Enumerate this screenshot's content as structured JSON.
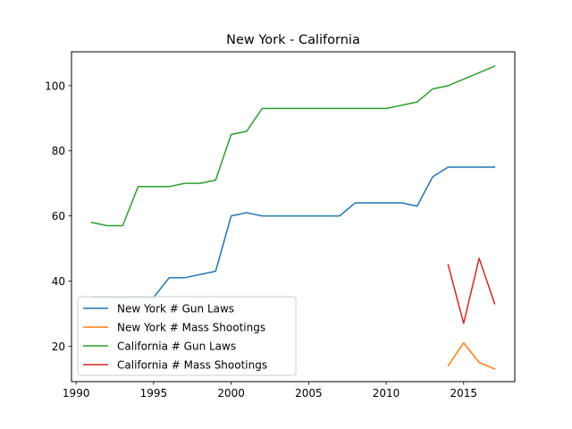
{
  "chart_data": {
    "type": "line",
    "title": "New York - California",
    "xlabel": "",
    "ylabel": "",
    "xlim": [
      1989.7,
      2018.3
    ],
    "ylim": [
      9.1,
      110.4
    ],
    "xticks": [
      1990,
      1995,
      2000,
      2005,
      2010,
      2015
    ],
    "yticks": [
      20,
      40,
      60,
      80,
      100
    ],
    "grid": false,
    "legend_position": "lower-left",
    "series": [
      {
        "name": "New York # Gun Laws",
        "color": "#1f77b4",
        "x": [
          1991,
          1992,
          1993,
          1994,
          1995,
          1996,
          1997,
          1998,
          1999,
          2000,
          2001,
          2002,
          2003,
          2004,
          2005,
          2006,
          2007,
          2008,
          2009,
          2010,
          2011,
          2012,
          2013,
          2014,
          2015,
          2016,
          2017
        ],
        "values": [
          35,
          35,
          35,
          35,
          35,
          41,
          41,
          42,
          43,
          60,
          61,
          60,
          60,
          60,
          60,
          60,
          60,
          64,
          64,
          64,
          64,
          63,
          72,
          75,
          75,
          75,
          75
        ]
      },
      {
        "name": "New York # Mass Shootings",
        "color": "#ff7f0e",
        "x": [
          2014,
          2015,
          2016,
          2017
        ],
        "values": [
          14,
          21,
          15,
          13
        ]
      },
      {
        "name": "California # Gun Laws",
        "color": "#2ca02c",
        "x": [
          1991,
          1992,
          1993,
          1994,
          1995,
          1996,
          1997,
          1998,
          1999,
          2000,
          2001,
          2002,
          2003,
          2004,
          2005,
          2006,
          2007,
          2008,
          2009,
          2010,
          2011,
          2012,
          2013,
          2014,
          2015,
          2016,
          2017
        ],
        "values": [
          58,
          57,
          57,
          69,
          69,
          69,
          70,
          70,
          71,
          85,
          86,
          93,
          93,
          93,
          93,
          93,
          93,
          93,
          93,
          93,
          94,
          95,
          99,
          100,
          102,
          104,
          106
        ]
      },
      {
        "name": "California # Mass Shootings",
        "color": "#d62728",
        "x": [
          2014,
          2015,
          2016,
          2017
        ],
        "values": [
          45,
          27,
          47,
          33
        ]
      }
    ]
  }
}
